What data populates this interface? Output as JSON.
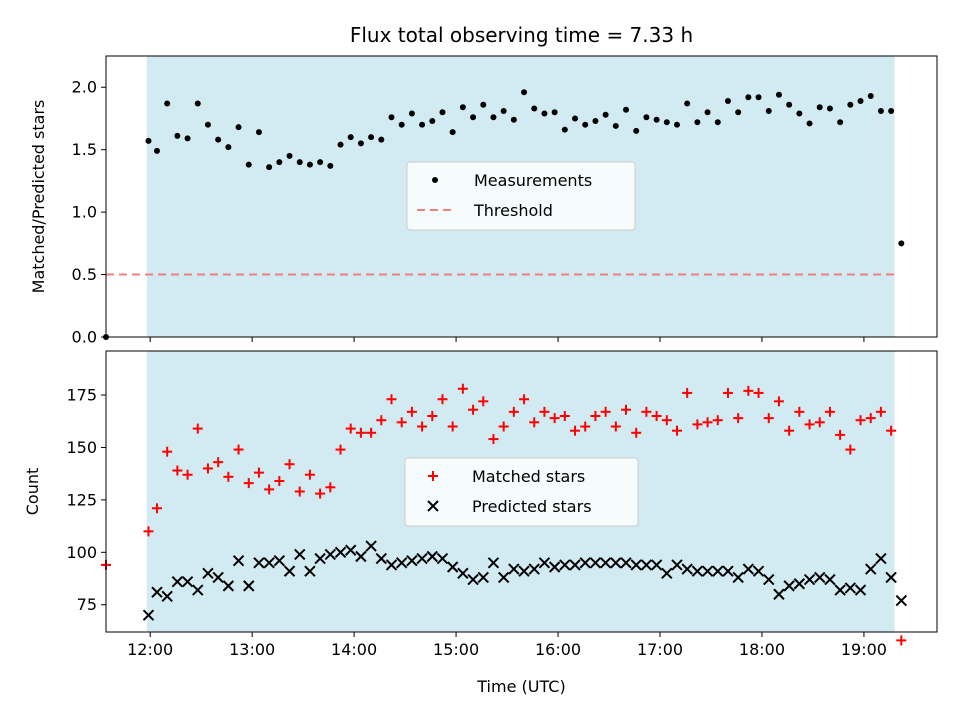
{
  "chart_data": [
    {
      "type": "scatter",
      "title": "Flux total observing time = 7.33 h",
      "xlabel": "",
      "ylabel": "Matched/Predicted stars",
      "xlim": [
        "11:34",
        "19:43"
      ],
      "ylim": [
        0,
        2.25
      ],
      "yticks": [
        0.0,
        0.5,
        1.0,
        1.5,
        2.0
      ],
      "ytick_labels": [
        "0.0",
        "0.5",
        "1.0",
        "1.5",
        "2.0"
      ],
      "observing_window": {
        "start": "11:58",
        "end": "19:18",
        "color": "#add8e6"
      },
      "legend": {
        "position": "center",
        "entries": [
          {
            "label": "Measurements",
            "marker": "dot",
            "color": "#000000"
          },
          {
            "label": "Threshold",
            "marker": "dashed-line",
            "color": "#f08080"
          }
        ]
      },
      "series": [
        {
          "name": "Measurements",
          "color": "#000000",
          "x": [
            "11:34",
            "11:59",
            "12:04",
            "12:10",
            "12:16",
            "12:22",
            "12:28",
            "12:34",
            "12:40",
            "12:46",
            "12:52",
            "12:58",
            "13:04",
            "13:10",
            "13:16",
            "13:22",
            "13:28",
            "13:34",
            "13:40",
            "13:46",
            "13:52",
            "13:58",
            "14:04",
            "14:10",
            "14:16",
            "14:22",
            "14:28",
            "14:34",
            "14:40",
            "14:46",
            "14:52",
            "14:58",
            "15:04",
            "15:10",
            "15:16",
            "15:22",
            "15:28",
            "15:34",
            "15:40",
            "15:46",
            "15:52",
            "15:58",
            "16:04",
            "16:10",
            "16:16",
            "16:22",
            "16:28",
            "16:34",
            "16:40",
            "16:46",
            "16:52",
            "16:58",
            "17:04",
            "17:10",
            "17:16",
            "17:22",
            "17:28",
            "17:34",
            "17:40",
            "17:46",
            "17:52",
            "17:58",
            "18:04",
            "18:10",
            "18:16",
            "18:22",
            "18:28",
            "18:34",
            "18:40",
            "18:46",
            "18:52",
            "18:58",
            "19:04",
            "19:10",
            "19:16",
            "19:22"
          ],
          "y": [
            0.0,
            1.57,
            1.49,
            1.87,
            1.61,
            1.59,
            1.87,
            1.7,
            1.58,
            1.52,
            1.68,
            1.38,
            1.64,
            1.36,
            1.4,
            1.45,
            1.4,
            1.38,
            1.4,
            1.37,
            1.54,
            1.6,
            1.55,
            1.6,
            1.58,
            1.76,
            1.7,
            1.79,
            1.7,
            1.73,
            1.8,
            1.64,
            1.84,
            1.76,
            1.86,
            1.76,
            1.81,
            1.74,
            1.96,
            1.83,
            1.79,
            1.8,
            1.66,
            1.75,
            1.7,
            1.73,
            1.78,
            1.69,
            1.82,
            1.65,
            1.76,
            1.74,
            1.72,
            1.7,
            1.87,
            1.72,
            1.8,
            1.72,
            1.89,
            1.8,
            1.92,
            1.92,
            1.81,
            1.94,
            1.86,
            1.79,
            1.71,
            1.84,
            1.83,
            1.72,
            1.86,
            1.89,
            1.93,
            1.81,
            1.81,
            0.75
          ]
        },
        {
          "name": "Threshold",
          "color": "#f08080",
          "x": [
            "11:34",
            "19:18"
          ],
          "y": [
            0.5,
            0.5
          ]
        }
      ]
    },
    {
      "type": "scatter",
      "title": "",
      "xlabel": "Time (UTC)",
      "ylabel": "Count",
      "xlim": [
        "11:34",
        "19:43"
      ],
      "ylim": [
        62,
        196
      ],
      "yticks": [
        75,
        100,
        125,
        150,
        175
      ],
      "ytick_labels": [
        "75",
        "100",
        "125",
        "150",
        "175"
      ],
      "xticks": [
        "12:00",
        "13:00",
        "14:00",
        "15:00",
        "16:00",
        "17:00",
        "18:00",
        "19:00"
      ],
      "xtick_labels": [
        "12:00",
        "13:00",
        "14:00",
        "15:00",
        "16:00",
        "17:00",
        "18:00",
        "19:00"
      ],
      "observing_window": {
        "start": "11:58",
        "end": "19:18",
        "color": "#add8e6"
      },
      "legend": {
        "position": "center",
        "entries": [
          {
            "label": "Matched stars",
            "marker": "plus",
            "color": "#ff0000"
          },
          {
            "label": "Predicted stars",
            "marker": "x",
            "color": "#000000"
          }
        ]
      },
      "series": [
        {
          "name": "Matched stars",
          "color": "#ff0000",
          "x": [
            "11:34",
            "11:59",
            "12:04",
            "12:10",
            "12:16",
            "12:22",
            "12:28",
            "12:34",
            "12:40",
            "12:46",
            "12:52",
            "12:58",
            "13:04",
            "13:10",
            "13:16",
            "13:22",
            "13:28",
            "13:34",
            "13:40",
            "13:46",
            "13:52",
            "13:58",
            "14:04",
            "14:10",
            "14:16",
            "14:22",
            "14:28",
            "14:34",
            "14:40",
            "14:46",
            "14:52",
            "14:58",
            "15:04",
            "15:10",
            "15:16",
            "15:22",
            "15:28",
            "15:34",
            "15:40",
            "15:46",
            "15:52",
            "15:58",
            "16:04",
            "16:10",
            "16:16",
            "16:22",
            "16:28",
            "16:34",
            "16:40",
            "16:46",
            "16:52",
            "16:58",
            "17:04",
            "17:10",
            "17:16",
            "17:22",
            "17:28",
            "17:34",
            "17:40",
            "17:46",
            "17:52",
            "17:58",
            "18:04",
            "18:10",
            "18:16",
            "18:22",
            "18:28",
            "18:34",
            "18:40",
            "18:46",
            "18:52",
            "18:58",
            "19:04",
            "19:10",
            "19:16",
            "19:22"
          ],
          "y": [
            94,
            110,
            121,
            148,
            139,
            137,
            159,
            140,
            143,
            136,
            149,
            133,
            138,
            130,
            134,
            142,
            129,
            137,
            128,
            131,
            149,
            159,
            157,
            157,
            163,
            173,
            162,
            167,
            160,
            165,
            173,
            160,
            178,
            168,
            172,
            154,
            160,
            167,
            173,
            162,
            167,
            164,
            165,
            158,
            160,
            165,
            167,
            160,
            168,
            157,
            167,
            165,
            163,
            158,
            176,
            161,
            162,
            163,
            176,
            164,
            177,
            176,
            164,
            172,
            158,
            167,
            161,
            162,
            167,
            156,
            149,
            163,
            164,
            167,
            158,
            58
          ]
        },
        {
          "name": "Predicted stars",
          "color": "#000000",
          "x": [
            "11:34",
            "11:59",
            "12:04",
            "12:10",
            "12:16",
            "12:22",
            "12:28",
            "12:34",
            "12:40",
            "12:46",
            "12:52",
            "12:58",
            "13:04",
            "13:10",
            "13:16",
            "13:22",
            "13:28",
            "13:34",
            "13:40",
            "13:46",
            "13:52",
            "13:58",
            "14:04",
            "14:10",
            "14:16",
            "14:22",
            "14:28",
            "14:34",
            "14:40",
            "14:46",
            "14:52",
            "14:58",
            "15:04",
            "15:10",
            "15:16",
            "15:22",
            "15:28",
            "15:34",
            "15:40",
            "15:46",
            "15:52",
            "15:58",
            "16:04",
            "16:10",
            "16:16",
            "16:22",
            "16:28",
            "16:34",
            "16:40",
            "16:46",
            "16:52",
            "16:58",
            "17:04",
            "17:10",
            "17:16",
            "17:22",
            "17:28",
            "17:34",
            "17:40",
            "17:46",
            "17:52",
            "17:58",
            "18:04",
            "18:10",
            "18:16",
            "18:22",
            "18:28",
            "18:34",
            "18:40",
            "18:46",
            "18:52",
            "18:58",
            "19:04",
            "19:10",
            "19:16",
            "19:22"
          ],
          "y": [
            null,
            70,
            81,
            79,
            86,
            86,
            82,
            90,
            88,
            84,
            96,
            84,
            95,
            95,
            96,
            91,
            99,
            91,
            97,
            99,
            100,
            101,
            98,
            103,
            97,
            94,
            95,
            96,
            97,
            98,
            97,
            93,
            90,
            87,
            88,
            95,
            88,
            92,
            91,
            92,
            95,
            93,
            94,
            94,
            95,
            95,
            95,
            95,
            95,
            94,
            94,
            94,
            90,
            94,
            92,
            91,
            91,
            91,
            91,
            88,
            92,
            91,
            87,
            80,
            84,
            85,
            87,
            88,
            87,
            82,
            83,
            82,
            92,
            97,
            88,
            77
          ]
        }
      ]
    }
  ]
}
